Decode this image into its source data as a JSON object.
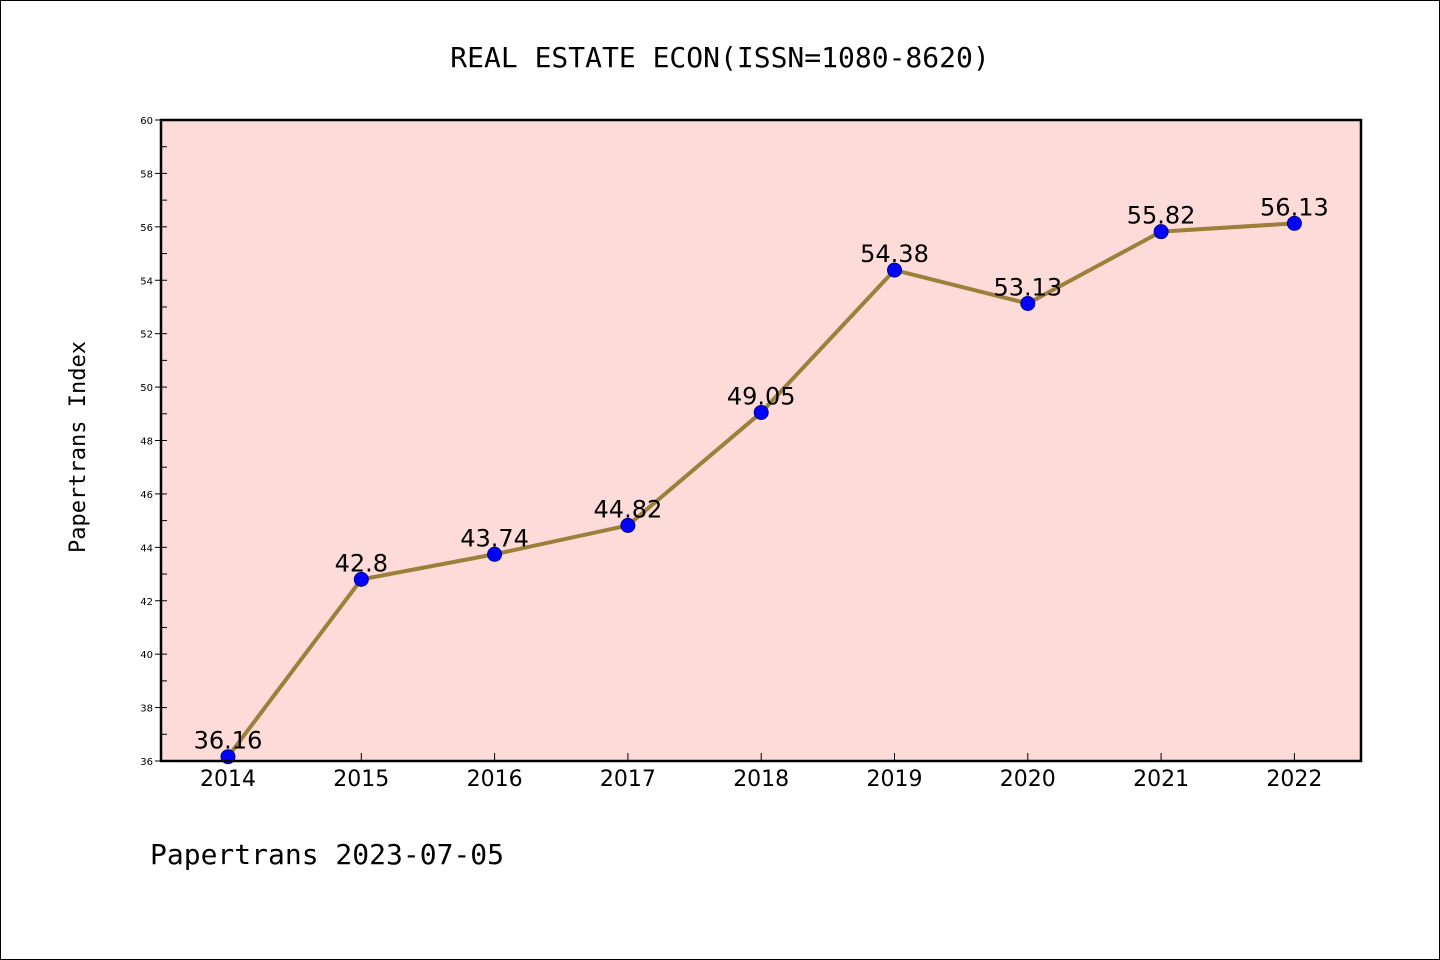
{
  "chart_data": {
    "type": "line",
    "title": "REAL ESTATE ECON(ISSN=1080-8620)",
    "xlabel": "",
    "ylabel": "Papertrans Index",
    "footer": "Papertrans 2023-07-05",
    "categories": [
      "2014",
      "2015",
      "2016",
      "2017",
      "2018",
      "2019",
      "2020",
      "2021",
      "2022"
    ],
    "series": [
      {
        "values": [
          36.16,
          42.8,
          43.74,
          44.82,
          49.05,
          54.38,
          53.13,
          55.82,
          56.13
        ],
        "labels": [
          "36.16",
          "42.8",
          "43.74",
          "44.82",
          "49.05",
          "54.38",
          "53.13",
          "55.82",
          "56.13"
        ]
      }
    ],
    "ylim": [
      36,
      60
    ],
    "yticks": [
      "36",
      "38",
      "40",
      "42",
      "44",
      "46",
      "48",
      "50",
      "52",
      "54",
      "56",
      "58",
      "60"
    ],
    "grid": false,
    "colors": {
      "plot_background": "#fddbd9",
      "line": "#9b7f3a",
      "marker": "#0000ff"
    }
  }
}
